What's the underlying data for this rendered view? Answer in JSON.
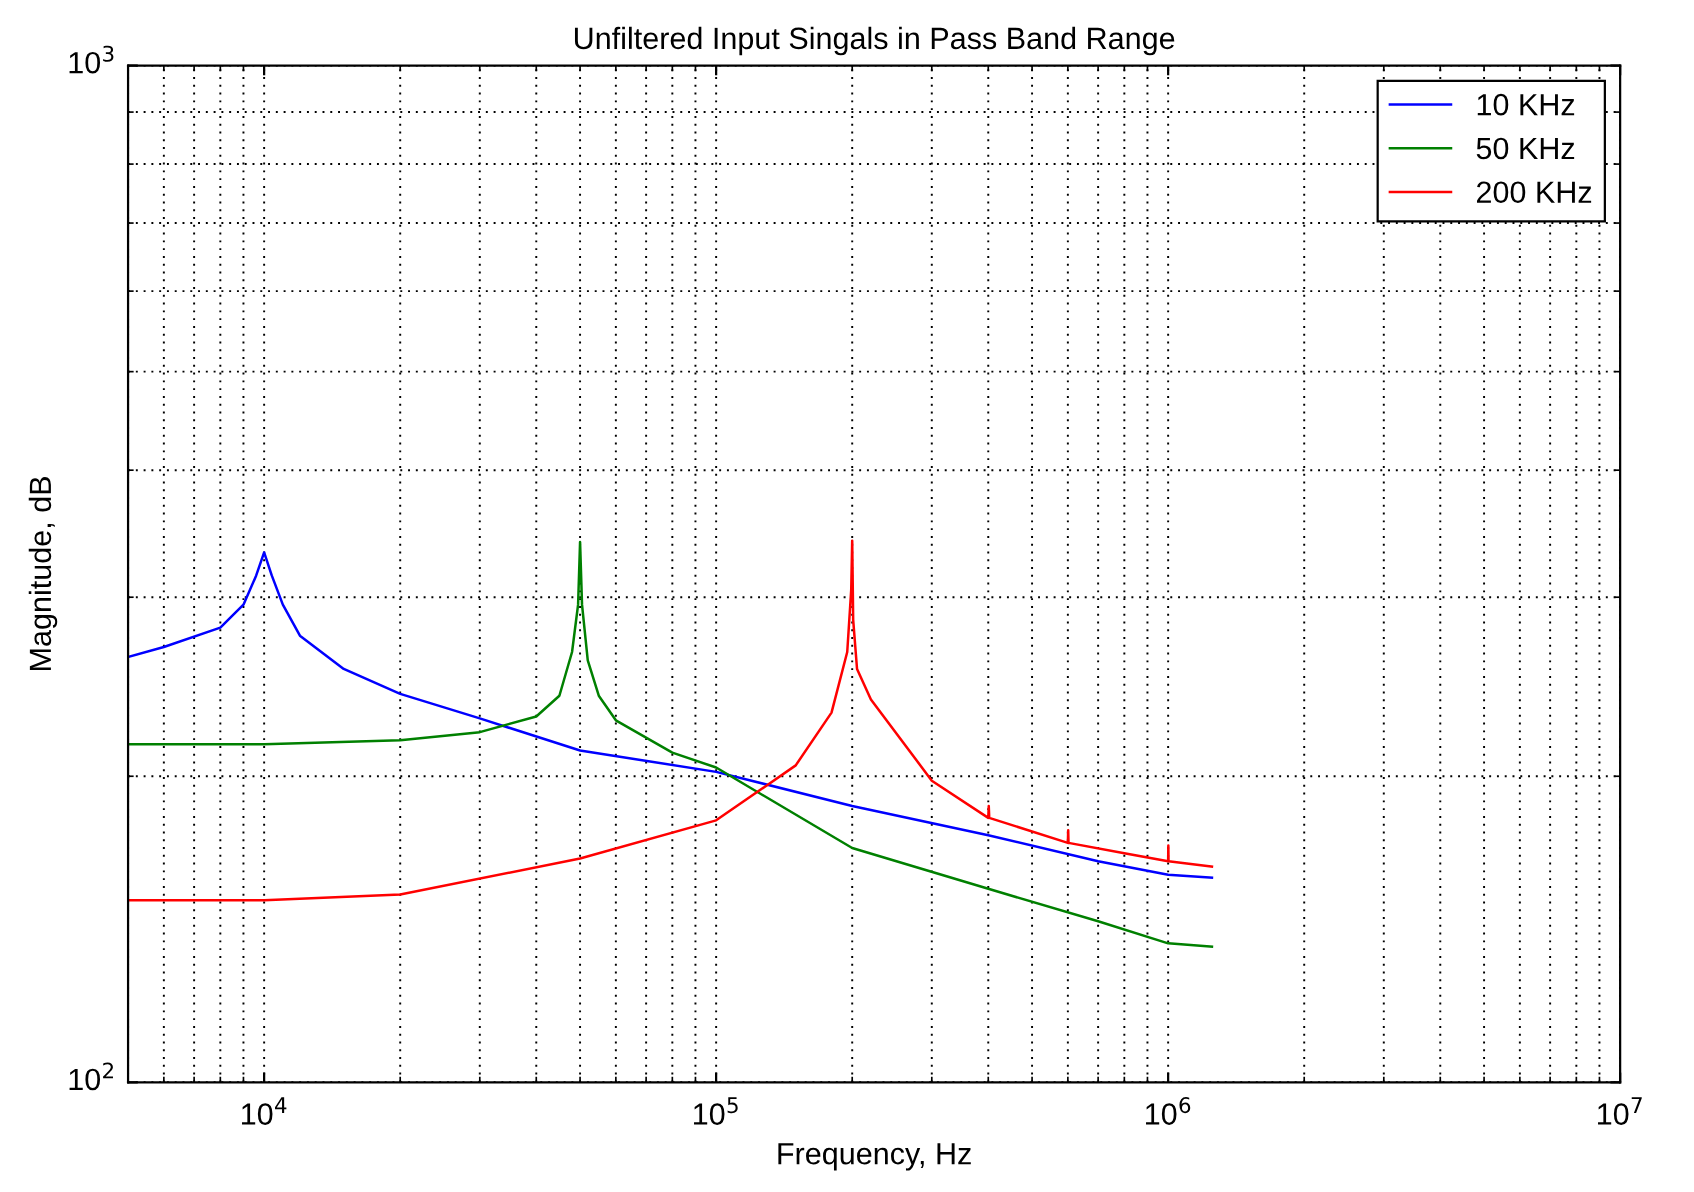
{
  "chart_data": {
    "type": "line",
    "title": "Unfiltered Input Singals in Pass Band Range",
    "xlabel": "Frequency, Hz",
    "ylabel": "Magnitude, dB",
    "log": "xy",
    "grid": true,
    "legend": "top right",
    "line_style": "solid",
    "marker": "none",
    "xlim": [
      5000,
      10000000
    ],
    "ylim": [
      100,
      1000
    ],
    "xticks": [
      {
        "value": 10000,
        "label": "10$^{4}$"
      },
      {
        "value": 100000,
        "label": "10$^{5}$"
      },
      {
        "value": 1000000,
        "label": "10$^{6}$"
      },
      {
        "value": 10000000,
        "label": "10$^{7}$"
      }
    ],
    "yticks": [
      {
        "value": 100,
        "label": "10$^{2}$"
      },
      {
        "value": 1000,
        "label": "10$^{3}$"
      }
    ],
    "series": [
      {
        "name": "10 KHz",
        "color": "#0000ff",
        "x": [
          5000,
          6000,
          8000,
          9000,
          9600,
          10000,
          10400,
          11000,
          12000,
          15000,
          20000,
          30000,
          50000,
          100000,
          200000,
          400000,
          700000,
          1000000,
          1250000
        ],
        "values": [
          262,
          268,
          280,
          295,
          315,
          332,
          315,
          295,
          275,
          255,
          241,
          228,
          212,
          202,
          187,
          175,
          165,
          160,
          159
        ]
      },
      {
        "name": "50 KHz",
        "color": "#008000",
        "x": [
          5000,
          10000,
          20000,
          30000,
          40000,
          45000,
          48000,
          49500,
          50000,
          50500,
          52000,
          55000,
          60000,
          80000,
          100000,
          200000,
          400000,
          700000,
          1000000,
          1250000
        ],
        "values": [
          215,
          215,
          217,
          221,
          229,
          240,
          265,
          295,
          340,
          295,
          260,
          240,
          227,
          211,
          204,
          170,
          155,
          144,
          137,
          136
        ]
      },
      {
        "name": "200 KHz",
        "color": "#ff0000",
        "x": [
          5000,
          10000,
          20000,
          50000,
          100000,
          150000,
          180000,
          195000,
          199000,
          200000,
          201000,
          205000,
          220000,
          300000,
          400000,
          401000,
          402000,
          600000,
          601000,
          602000,
          800000,
          1000000,
          1001000,
          1002000,
          1250000
        ],
        "values": [
          151,
          151,
          153,
          166,
          181,
          205,
          231,
          265,
          305,
          341,
          285,
          255,
          238,
          198,
          182,
          187,
          182,
          172,
          177,
          172,
          168,
          165,
          171,
          165,
          163
        ]
      }
    ]
  }
}
